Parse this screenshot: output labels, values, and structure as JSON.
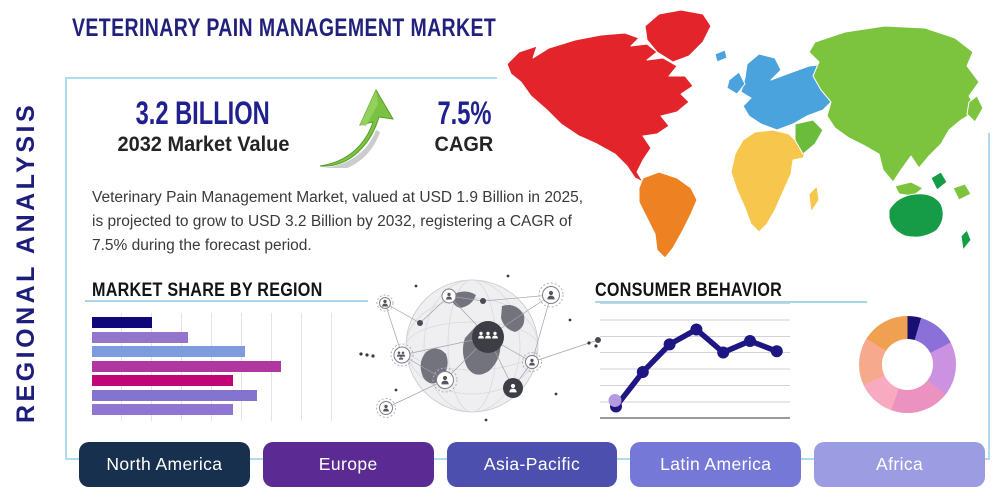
{
  "title": "VETERINARY PAIN MANAGEMENT MARKET",
  "side_label": "REGIONAL ANALYSIS",
  "stats": {
    "market_value": "3.2 BILLION",
    "market_value_label": "2032 Market Value",
    "cagr_value": "7.5%",
    "cagr_label": "CAGR"
  },
  "description": "Veterinary Pain Management Market, valued at USD 1.9 Billion in 2025, is projected to grow to USD 3.2 Billion by 2032, registering a CAGR of 7.5% during the forecast period.",
  "sections": {
    "bar_chart_title": "MARKET SHARE BY REGION",
    "line_chart_title": "CONSUMER BEHAVIOR"
  },
  "regions": [
    {
      "label": "North America",
      "color": "#17304e"
    },
    {
      "label": "Europe",
      "color": "#5b2a92"
    },
    {
      "label": "Asia-Pacific",
      "color": "#4c4fae"
    },
    {
      "label": "Latin America",
      "color": "#7678d8"
    },
    {
      "label": "Africa",
      "color": "#9b9ce1"
    }
  ],
  "chart_data": [
    {
      "type": "bar",
      "orientation": "horizontal",
      "title": "MARKET SHARE BY REGION",
      "categories": [
        "",
        "",
        "",
        "",
        "",
        "",
        ""
      ],
      "values": [
        20,
        32,
        51,
        63,
        47,
        55,
        47
      ],
      "xlim": [
        0,
        80
      ],
      "colors": [
        "#10067c",
        "#9376cc",
        "#7f9bdf",
        "#b0379f",
        "#c30476",
        "#8473cf",
        "#8f76d2"
      ],
      "grid": true,
      "axis_labels_shown": false
    },
    {
      "type": "line",
      "title": "CONSUMER BEHAVIOR",
      "x": [
        1,
        2,
        3,
        4,
        5,
        6,
        7
      ],
      "values": [
        1.0,
        4.0,
        6.4,
        7.7,
        5.7,
        6.7,
        5.8
      ],
      "ylim": [
        0,
        10
      ],
      "line_color": "#1e1683",
      "first_point_halo": "#b49ade",
      "grid": true,
      "axis_labels_shown": false
    },
    {
      "type": "pie",
      "subtype": "donut",
      "labels": [
        "",
        "",
        "",
        "",
        "",
        "",
        ""
      ],
      "values": [
        4.5,
        13,
        18,
        20,
        12.5,
        16,
        16
      ],
      "colors": [
        "#181070",
        "#8a70d8",
        "#cb92e2",
        "#eb92c0",
        "#f8abc0",
        "#f6a98c",
        "#efa050"
      ]
    }
  ],
  "map": {
    "regions": [
      {
        "name": "North America",
        "color": "#e3242b"
      },
      {
        "name": "South America",
        "color": "#ee8122"
      },
      {
        "name": "Europe",
        "color": "#4ba3de"
      },
      {
        "name": "Africa",
        "color": "#f6c64d"
      },
      {
        "name": "Asia",
        "color": "#7cc43e"
      },
      {
        "name": "Middle East",
        "color": "#6abc3a"
      },
      {
        "name": "Oceania",
        "color": "#169c47"
      }
    ]
  },
  "colors": {
    "accent_navy": "#21217c",
    "box_border_blue": "#aedcef",
    "underline_blue": "#a6d7e8",
    "arrow_green": "#7cc242"
  }
}
